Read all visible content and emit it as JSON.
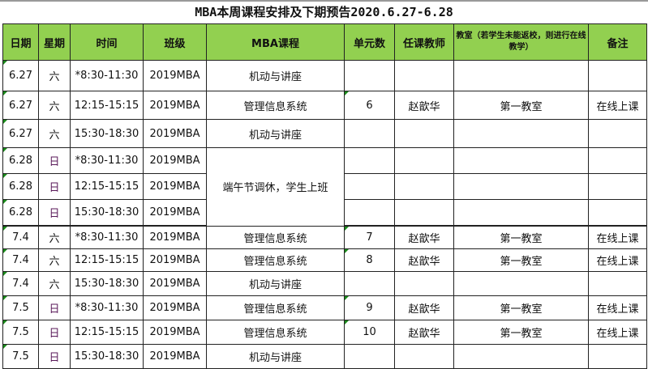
{
  "title": "MBA本周课程安排及下期预告2020.6.27-6.28",
  "colors": {
    "header_bg": "#92D050",
    "sunday_text": "#5a1a5a",
    "corner_mark": "#1a8a1a"
  },
  "headers": [
    "日期",
    "星期",
    "时间",
    "班级",
    "MBA课程",
    "单元数",
    "任课教师",
    "教室（若学生未能返校，则进行在线教学）",
    "备注"
  ],
  "rows": [
    [
      "6.27",
      "六",
      "*8:30-11:30",
      "2019MBA",
      "机动与讲座",
      "",
      "",
      "",
      ""
    ],
    [
      "6.27",
      "六",
      "12:15-15:15",
      "2019MBA",
      "管理信息系统",
      "6",
      "赵歆华",
      "第一教室",
      "在线上课"
    ],
    [
      "6.27",
      "六",
      "15:30-18:30",
      "2019MBA",
      "机动与讲座",
      "",
      "",
      "",
      ""
    ],
    [
      "6.28",
      "日",
      "*8:30-11:30",
      "2019MBA",
      "端午节调休，学生上班",
      "",
      "",
      "",
      ""
    ],
    [
      "6.28",
      "日",
      "12:15-15:15",
      "2019MBA",
      "",
      "",
      "",
      "",
      ""
    ],
    [
      "6.28",
      "日",
      "15:30-18:30",
      "2019MBA",
      "",
      "",
      "",
      "",
      ""
    ],
    [
      "7.4",
      "六",
      "*8:30-11:30",
      "2019MBA",
      "管理信息系统",
      "7",
      "赵歆华",
      "第一教室",
      "在线上课"
    ],
    [
      "7.4",
      "六",
      "12:15-15:15",
      "2019MBA",
      "管理信息系统",
      "8",
      "赵歆华",
      "第一教室",
      "在线上课"
    ],
    [
      "7.4",
      "六",
      "15:30-18:30",
      "2019MBA",
      "机动与讲座",
      "",
      "",
      "",
      ""
    ],
    [
      "7.5",
      "日",
      "*8:30-11:30",
      "2019MBA",
      "管理信息系统",
      "9",
      "赵歆华",
      "第一教室",
      "在线上课"
    ],
    [
      "7.5",
      "日",
      "12:15-15:15",
      "2019MBA",
      "管理信息系统",
      "10",
      "赵歆华",
      "第一教室",
      "在线上课"
    ],
    [
      "7.5",
      "日",
      "15:30-18:30",
      "2019MBA",
      "机动与讲座",
      "",
      "",
      "",
      ""
    ]
  ]
}
